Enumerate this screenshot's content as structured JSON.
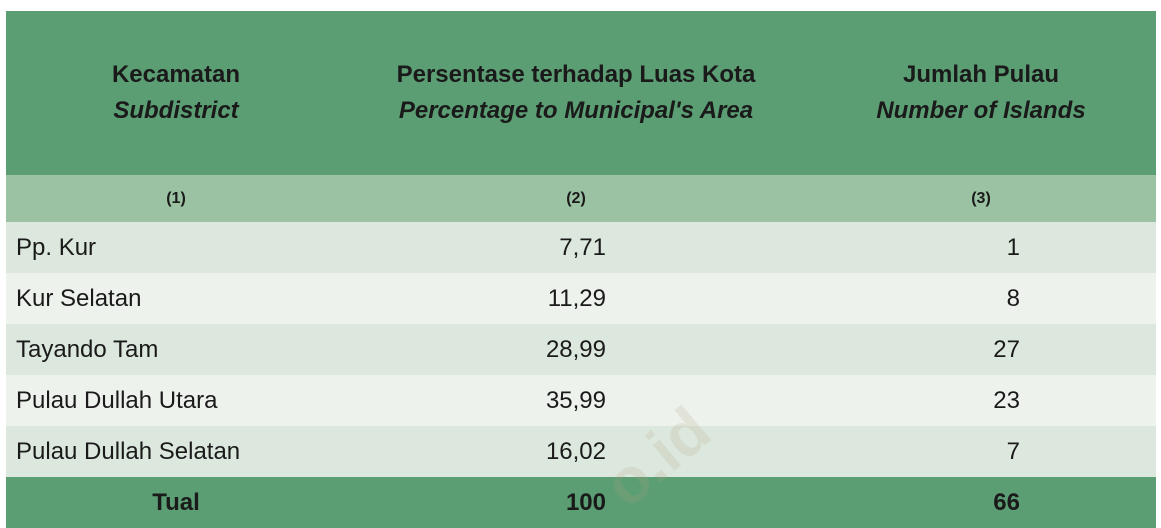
{
  "header": {
    "col1_id": "Kecamatan",
    "col1_en": "Subdistrict",
    "col2_id": "Persentase terhadap Luas Kota",
    "col2_en": "Percentage to Municipal's Area",
    "col3_id": "Jumlah Pulau",
    "col3_en": "Number of Islands",
    "num1": "(1)",
    "num2": "(2)",
    "num3": "(3)"
  },
  "rows": [
    {
      "name": "Pp. Kur",
      "pct": "7,71",
      "islands": "1"
    },
    {
      "name": "Kur Selatan",
      "pct": "11,29",
      "islands": "8"
    },
    {
      "name": "Tayando Tam",
      "pct": "28,99",
      "islands": "27"
    },
    {
      "name": "Pulau Dullah Utara",
      "pct": "35,99",
      "islands": "23"
    },
    {
      "name": "Pulau Dullah Selatan",
      "pct": "16,02",
      "islands": "7"
    }
  ],
  "total": {
    "label": "Tual",
    "pct": "100",
    "islands": "66"
  },
  "watermark": "o.id"
}
